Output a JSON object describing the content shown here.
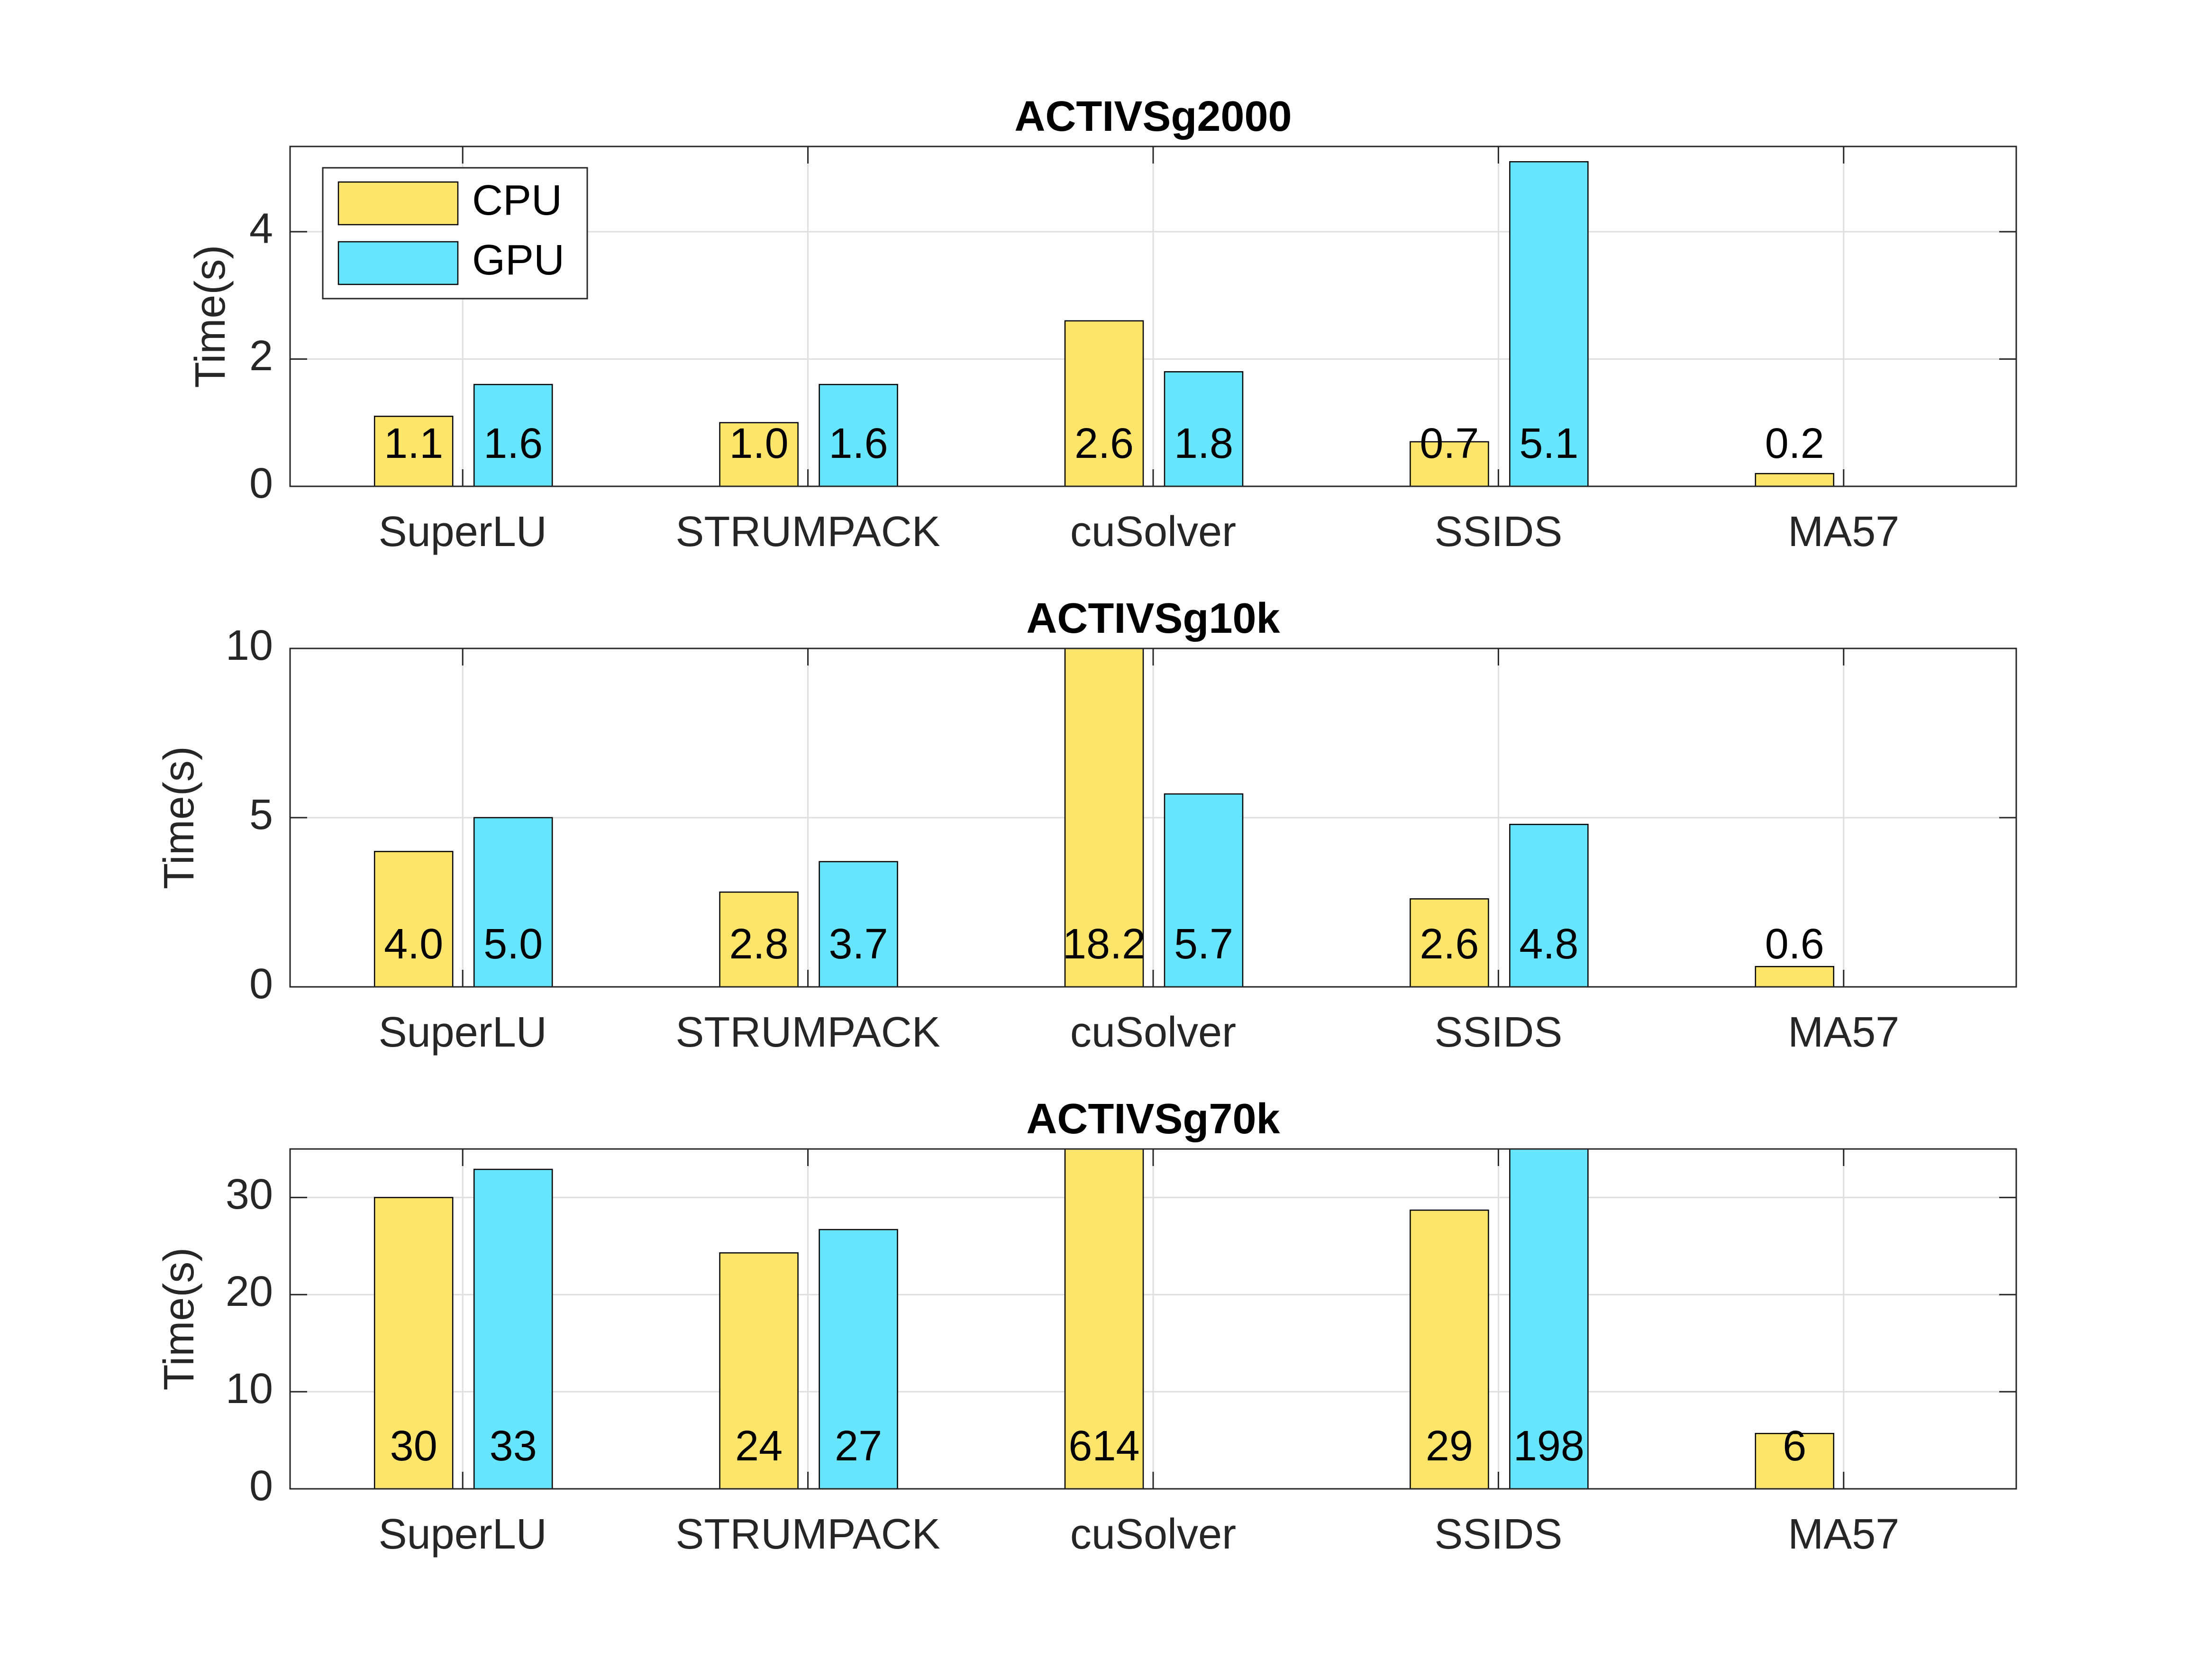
{
  "chart_data": [
    {
      "type": "bar",
      "title": "ACTIVSg2000",
      "ylabel": "Time(s)",
      "categories": [
        "SuperLU",
        "STRUMPACK",
        "cuSolver",
        "SSIDS",
        "MA57"
      ],
      "series": [
        {
          "name": "CPU",
          "color": "#fde46a",
          "values": [
            1.1,
            1.0,
            2.6,
            0.7,
            0.2
          ],
          "value_labels": [
            "1.1",
            "1.0",
            "2.6",
            "0.7",
            "0.2"
          ]
        },
        {
          "name": "GPU",
          "color": "#66e5fd",
          "values": [
            1.6,
            1.6,
            1.8,
            5.1,
            null
          ],
          "value_labels": [
            "1.6",
            "1.6",
            "1.8",
            "5.1",
            null
          ]
        }
      ],
      "ylim": [
        0,
        5.34
      ],
      "yticks": [
        0,
        2,
        4
      ],
      "grid": true,
      "legend": "northwest"
    },
    {
      "type": "bar",
      "title": "ACTIVSg10k",
      "ylabel": "Time(s)",
      "categories": [
        "SuperLU",
        "STRUMPACK",
        "cuSolver",
        "SSIDS",
        "MA57"
      ],
      "series": [
        {
          "name": "CPU",
          "color": "#fde46a",
          "values": [
            4.0,
            2.8,
            18.2,
            2.6,
            0.6
          ],
          "value_labels": [
            "4.0",
            "2.8",
            "18.2",
            "2.6",
            "0.6"
          ]
        },
        {
          "name": "GPU",
          "color": "#66e5fd",
          "values": [
            5.0,
            3.7,
            5.7,
            4.8,
            null
          ],
          "value_labels": [
            "5.0",
            "3.7",
            "5.7",
            "4.8",
            null
          ]
        }
      ],
      "ylim": [
        0,
        10
      ],
      "yticks": [
        0,
        5,
        10
      ],
      "grid": true
    },
    {
      "type": "bar",
      "title": "ACTIVSg70k",
      "ylabel": "Time(s)",
      "categories": [
        "SuperLU",
        "STRUMPACK",
        "cuSolver",
        "SSIDS",
        "MA57"
      ],
      "series": [
        {
          "name": "CPU",
          "color": "#fde46a",
          "values": [
            30,
            24.3,
            614,
            28.7,
            5.7
          ],
          "value_labels": [
            "30",
            "24",
            "614",
            "29",
            "6"
          ]
        },
        {
          "name": "GPU",
          "color": "#66e5fd",
          "values": [
            32.9,
            26.7,
            null,
            198,
            null
          ],
          "value_labels": [
            "33",
            "27",
            null,
            "198",
            null
          ]
        }
      ],
      "ylim": [
        0,
        35
      ],
      "yticks": [
        0,
        10,
        20,
        30
      ],
      "grid": true
    }
  ]
}
